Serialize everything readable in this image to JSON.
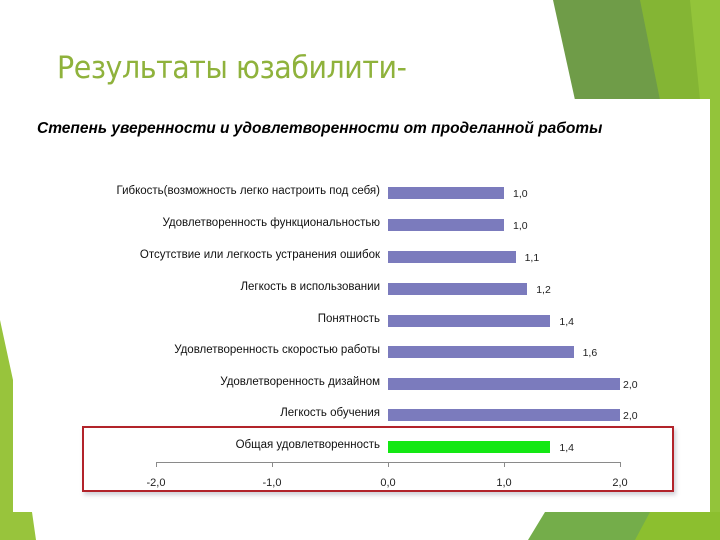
{
  "slide": {
    "title": "Результаты юзабилити-",
    "accent_colors": {
      "title_green": "#8fb23c",
      "dark_green": "#6f9c48",
      "light_green": "#8cbf2f",
      "highlight_box": "#b2232a"
    }
  },
  "chart_data": {
    "type": "bar",
    "orientation": "horizontal",
    "title": "Степень уверенности и удовлетворенности от проделанной работы",
    "categories": [
      "Гибкость(возможность легко настроить под себя)",
      "Удовлетворенность функциональностью",
      "Отсутствие или легкость устранения ошибок",
      "Легкость в использовании",
      "Понятность",
      "Удовлетворенность скоростью работы",
      "Удовлетворенность дизайном",
      "Легкость обучения",
      "Общая удовлетворенность"
    ],
    "values": [
      1.0,
      1.0,
      1.1,
      1.2,
      1.4,
      1.6,
      2.0,
      2.0,
      1.4
    ],
    "value_labels": [
      "1,0",
      "1,0",
      "1,1",
      "1,2",
      "1,4",
      "1,6",
      "2,0",
      "2,0",
      "1,4"
    ],
    "bar_colors": [
      "#7b7bbd",
      "#7b7bbd",
      "#7b7bbd",
      "#7b7bbd",
      "#7b7bbd",
      "#7b7bbd",
      "#7b7bbd",
      "#7b7bbd",
      "#13e813"
    ],
    "xlabel": "",
    "ylabel": "",
    "xlim": [
      -2.0,
      2.0
    ],
    "x_ticks": [
      -2.0,
      -1.0,
      0.0,
      1.0,
      2.0
    ],
    "x_tick_labels": [
      "-2,0",
      "-1,0",
      "0,0",
      "1,0",
      "2,0"
    ],
    "grid": false,
    "legend": null,
    "annotations": [
      "Red box highlights 'Общая удовлетворенность' row and x-axis"
    ]
  }
}
